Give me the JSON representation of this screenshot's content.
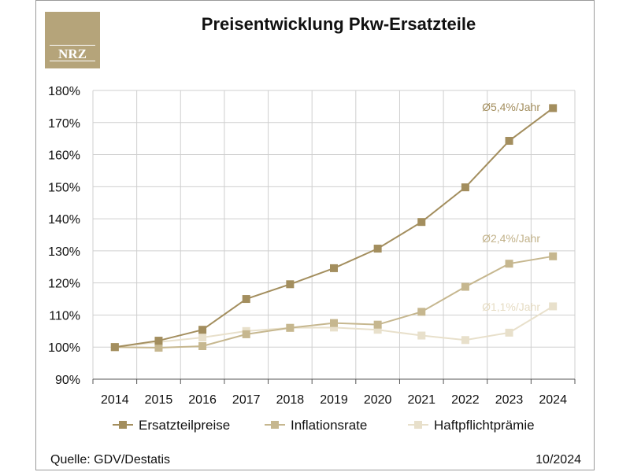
{
  "logo": {
    "text": "NRZ"
  },
  "source_label": "Quelle: GDV/Destatis",
  "date_label": "10/2024",
  "colors": {
    "ersatzteilpreise": "#a38e5e",
    "inflationsrate": "#c6b78f",
    "haftpflichtpraemie": "#e8e0cb",
    "annot_ersatz": "#a38e5e",
    "annot_infl": "#c2b28a",
    "annot_haft": "#e6dcc3"
  },
  "chart_data": {
    "type": "line",
    "title": "Preisentwicklung Pkw-Ersatzteile",
    "x": [
      "2014",
      "2015",
      "2016",
      "2017",
      "2018",
      "2019",
      "2020",
      "2021",
      "2022",
      "2023",
      "2024"
    ],
    "y_ticks": [
      "90%",
      "100%",
      "110%",
      "120%",
      "130%",
      "140%",
      "150%",
      "160%",
      "170%",
      "180%"
    ],
    "ylim": [
      90,
      180
    ],
    "grid": true,
    "legend_position": "bottom",
    "series": [
      {
        "name": "Ersatzteilpreise",
        "values": [
          100,
          102,
          105.4,
          115,
          119.6,
          124.6,
          130.7,
          139,
          149.8,
          164.3,
          174.5
        ]
      },
      {
        "name": "Inflationsrate",
        "values": [
          100,
          99.8,
          100.3,
          104,
          106,
          107.5,
          107,
          111,
          118.8,
          126,
          128.3
        ]
      },
      {
        "name": "Haftpflichtprämie",
        "values": [
          100,
          101.6,
          103,
          105,
          106,
          106.1,
          105.4,
          103.6,
          102.2,
          104.5,
          112.7
        ]
      }
    ],
    "annotations": [
      "Ø5,4%/Jahr",
      "Ø2,4%/Jahr",
      "Ø1,1%/Jahr"
    ]
  }
}
